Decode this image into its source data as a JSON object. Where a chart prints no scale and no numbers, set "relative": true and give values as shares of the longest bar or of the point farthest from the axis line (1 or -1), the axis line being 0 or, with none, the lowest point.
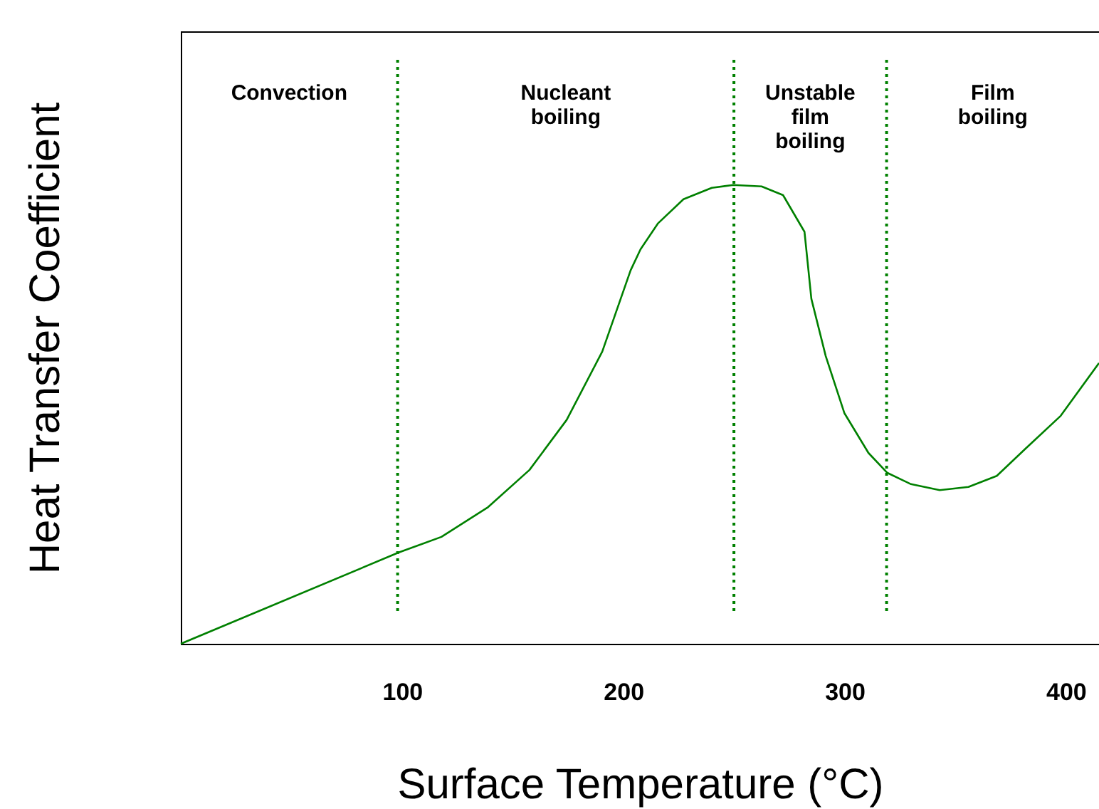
{
  "chart_data": {
    "type": "line",
    "relative": true,
    "xlabel": "Surface Temperature  (°C)",
    "ylabel": "Heat Transfer Coefficient",
    "xlim": [
      0,
      415
    ],
    "xticks": [
      100,
      200,
      300,
      400
    ],
    "grid": false,
    "marker": "none",
    "line_style": "solid",
    "tick_labels": "x",
    "x": [
      0,
      98.5,
      117.8,
      138.9,
      157.6,
      174.4,
      190.5,
      203.3,
      207.8,
      215.6,
      227.2,
      240,
      249.7,
      262.5,
      272.2,
      281.9,
      285,
      291.5,
      299.9,
      310.8,
      319.2,
      330,
      343,
      356,
      368.8,
      381.7,
      397.7,
      415
    ],
    "series": [
      {
        "color": "#008000",
        "values": [
          0,
          0.199,
          0.233,
          0.298,
          0.379,
          0.488,
          0.637,
          0.814,
          0.86,
          0.916,
          0.969,
          0.994,
          1,
          0.997,
          0.978,
          0.898,
          0.752,
          0.627,
          0.503,
          0.416,
          0.373,
          0.348,
          0.335,
          0.342,
          0.366,
          0.425,
          0.497,
          0.612
        ]
      }
    ],
    "ref_lines": [
      {
        "axis": "x",
        "value": 98,
        "color": "#008000",
        "line_style": "dotted"
      },
      {
        "axis": "x",
        "value": 250,
        "color": "#008000",
        "line_style": "dotted"
      },
      {
        "axis": "x",
        "value": 319,
        "color": "#008000",
        "line_style": "dotted"
      }
    ],
    "annotations": [
      "Convection",
      "Nucleant\nboiling",
      "Unstable\nfilm\nboiling",
      "Film\nboiling"
    ]
  }
}
